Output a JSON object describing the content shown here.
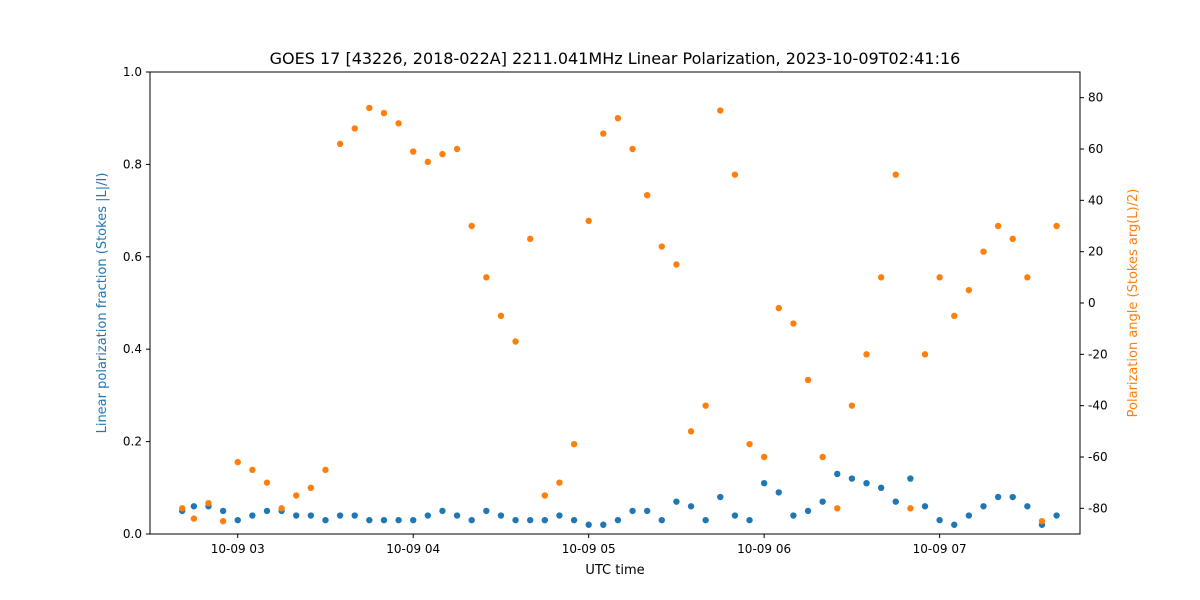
{
  "chart_data": {
    "type": "scatter",
    "title": "GOES 17 [43226, 2018-022A] 2211.041MHz Linear Polarization, 2023-10-09T02:41:16",
    "xlabel": "UTC time",
    "ylabel_left": "Linear polarization fraction (Stokes |L|/I)",
    "ylabel_right": "Polarization angle (Stokes arg(L)/2)",
    "xlim": [
      "2023-10-09T02:30",
      "2023-10-09T07:48"
    ],
    "ylim_left": [
      0,
      1
    ],
    "ylim_right": [
      -90,
      90
    ],
    "x_ticks": [
      {
        "value": "2023-10-09T03:00",
        "label": "10-09 03"
      },
      {
        "value": "2023-10-09T04:00",
        "label": "10-09 04"
      },
      {
        "value": "2023-10-09T05:00",
        "label": "10-09 05"
      },
      {
        "value": "2023-10-09T06:00",
        "label": "10-09 06"
      },
      {
        "value": "2023-10-09T07:00",
        "label": "10-09 07"
      }
    ],
    "y_ticks_left": [
      "0.0",
      "0.2",
      "0.4",
      "0.6",
      "0.8",
      "1.0"
    ],
    "y_ticks_right": [
      "-80",
      "-60",
      "-40",
      "-20",
      "0",
      "20",
      "40",
      "60",
      "80"
    ],
    "grid": false,
    "series": [
      {
        "axis": "left",
        "color": "#1f77b4",
        "x": [
          "02:41",
          "02:45",
          "02:50",
          "02:55",
          "03:00",
          "03:05",
          "03:10",
          "03:15",
          "03:20",
          "03:25",
          "03:30",
          "03:35",
          "03:40",
          "03:45",
          "03:50",
          "03:55",
          "04:00",
          "04:05",
          "04:10",
          "04:15",
          "04:20",
          "04:25",
          "04:30",
          "04:35",
          "04:40",
          "04:45",
          "04:50",
          "04:55",
          "05:00",
          "05:05",
          "05:10",
          "05:15",
          "05:20",
          "05:25",
          "05:30",
          "05:35",
          "05:40",
          "05:45",
          "05:50",
          "05:55",
          "06:00",
          "06:05",
          "06:10",
          "06:15",
          "06:20",
          "06:25",
          "06:30",
          "06:35",
          "06:40",
          "06:45",
          "06:50",
          "06:55",
          "07:00",
          "07:05",
          "07:10",
          "07:15",
          "07:20",
          "07:25",
          "07:30",
          "07:35",
          "07:40"
        ],
        "y": [
          0.05,
          0.06,
          0.06,
          0.05,
          0.03,
          0.04,
          0.05,
          0.05,
          0.04,
          0.04,
          0.03,
          0.04,
          0.04,
          0.03,
          0.03,
          0.03,
          0.03,
          0.04,
          0.05,
          0.04,
          0.03,
          0.05,
          0.04,
          0.03,
          0.03,
          0.03,
          0.04,
          0.03,
          0.02,
          0.02,
          0.03,
          0.05,
          0.05,
          0.03,
          0.07,
          0.06,
          0.03,
          0.08,
          0.04,
          0.03,
          0.11,
          0.09,
          0.04,
          0.05,
          0.07,
          0.13,
          0.12,
          0.11,
          0.1,
          0.07,
          0.12,
          0.06,
          0.03,
          0.02,
          0.04,
          0.06,
          0.08,
          0.08,
          0.06,
          0.02,
          0.04
        ]
      },
      {
        "axis": "right",
        "color": "#ff7f0e",
        "x": [
          "02:41",
          "02:45",
          "02:50",
          "02:55",
          "03:00",
          "03:05",
          "03:10",
          "03:15",
          "03:20",
          "03:25",
          "03:30",
          "03:35",
          "03:40",
          "03:45",
          "03:50",
          "03:55",
          "04:00",
          "04:05",
          "04:10",
          "04:15",
          "04:20",
          "04:25",
          "04:30",
          "04:35",
          "04:40",
          "04:45",
          "04:50",
          "04:55",
          "05:00",
          "05:05",
          "05:10",
          "05:15",
          "05:20",
          "05:25",
          "05:30",
          "05:35",
          "05:40",
          "05:45",
          "05:50",
          "05:55",
          "06:00",
          "06:05",
          "06:10",
          "06:15",
          "06:20",
          "06:25",
          "06:30",
          "06:35",
          "06:40",
          "06:45",
          "06:50",
          "06:55",
          "07:00",
          "07:05",
          "07:10",
          "07:15",
          "07:20",
          "07:25",
          "07:30",
          "07:35",
          "07:40"
        ],
        "y": [
          -80,
          -84,
          -78,
          -85,
          -62,
          -65,
          -70,
          -80,
          -75,
          -72,
          -65,
          62,
          68,
          76,
          74,
          70,
          59,
          55,
          58,
          60,
          30,
          10,
          -5,
          -15,
          25,
          -75,
          -70,
          -55,
          32,
          66,
          72,
          60,
          42,
          22,
          15,
          -50,
          -40,
          75,
          50,
          -55,
          -60,
          -2,
          -8,
          -30,
          -60,
          -80,
          -40,
          -20,
          10,
          50,
          -80,
          -20,
          10,
          -5,
          5,
          20,
          30,
          25,
          10,
          -85,
          30
        ]
      }
    ]
  }
}
